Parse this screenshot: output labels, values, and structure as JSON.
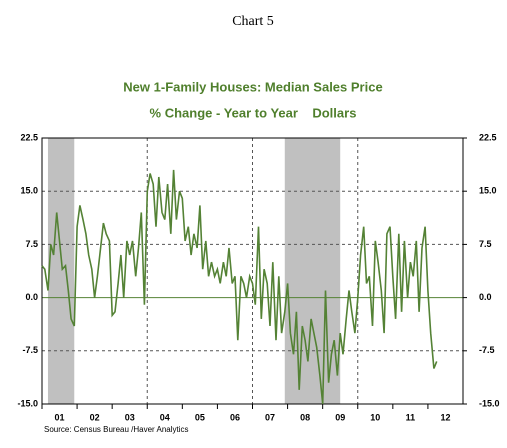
{
  "chart_data": {
    "type": "line",
    "header": "Chart 5",
    "title": "New 1-Family Houses: Median Sales Price",
    "subtitle": "% Change - Year to Year    Dollars",
    "source": "Source: Census Bureau /Haver Analytics",
    "xlim": [
      2001,
      2013
    ],
    "xticks": [
      {
        "value": 2001.5,
        "label": "01"
      },
      {
        "value": 2002.5,
        "label": "02"
      },
      {
        "value": 2003.5,
        "label": "03"
      },
      {
        "value": 2004.5,
        "label": "04"
      },
      {
        "value": 2005.5,
        "label": "05"
      },
      {
        "value": 2006.5,
        "label": "06"
      },
      {
        "value": 2007.5,
        "label": "07"
      },
      {
        "value": 2008.5,
        "label": "08"
      },
      {
        "value": 2009.5,
        "label": "09"
      },
      {
        "value": 2010.5,
        "label": "10"
      },
      {
        "value": 2011.5,
        "label": "11"
      },
      {
        "value": 2012.5,
        "label": "12"
      }
    ],
    "xgrid": [
      2001,
      2004,
      2007,
      2010
    ],
    "ylim": [
      -15,
      22.5
    ],
    "yticks": [
      {
        "value": -15,
        "label": "-15.0"
      },
      -7.5,
      {
        "value": 0,
        "label": "0.0"
      },
      7.5,
      {
        "value": 15,
        "label": "15.0"
      },
      22.5
    ],
    "y2lim": [
      -15,
      22.5
    ],
    "y2ticks": [
      {
        "value": -15,
        "label": "-15.0"
      },
      -7.5,
      {
        "value": 0,
        "label": "0.0"
      },
      7.5,
      {
        "value": 15,
        "label": "15.0"
      },
      22.5
    ],
    "grid": true,
    "shaded": [
      [
        2001.17,
        2001.92
      ],
      [
        2007.92,
        2009.5
      ]
    ],
    "x": [
      2001.0,
      2001.08,
      2001.17,
      2001.25,
      2001.33,
      2001.42,
      2001.5,
      2001.58,
      2001.67,
      2001.75,
      2001.83,
      2001.92,
      2002.0,
      2002.08,
      2002.17,
      2002.25,
      2002.33,
      2002.42,
      2002.5,
      2002.58,
      2002.67,
      2002.75,
      2002.83,
      2002.92,
      2003.0,
      2003.08,
      2003.17,
      2003.25,
      2003.33,
      2003.42,
      2003.5,
      2003.58,
      2003.67,
      2003.75,
      2003.83,
      2003.92,
      2004.0,
      2004.08,
      2004.17,
      2004.25,
      2004.33,
      2004.42,
      2004.5,
      2004.58,
      2004.67,
      2004.75,
      2004.83,
      2004.92,
      2005.0,
      2005.08,
      2005.17,
      2005.25,
      2005.33,
      2005.42,
      2005.5,
      2005.58,
      2005.67,
      2005.75,
      2005.83,
      2005.92,
      2006.0,
      2006.08,
      2006.17,
      2006.25,
      2006.33,
      2006.42,
      2006.5,
      2006.58,
      2006.67,
      2006.75,
      2006.83,
      2006.92,
      2007.0,
      2007.08,
      2007.17,
      2007.25,
      2007.33,
      2007.42,
      2007.5,
      2007.58,
      2007.67,
      2007.75,
      2007.83,
      2007.92,
      2008.0,
      2008.08,
      2008.17,
      2008.25,
      2008.33,
      2008.42,
      2008.5,
      2008.58,
      2008.67,
      2008.75,
      2008.83,
      2008.92,
      2009.0,
      2009.08,
      2009.17,
      2009.25,
      2009.33,
      2009.42,
      2009.5,
      2009.58,
      2009.67,
      2009.75,
      2009.83,
      2009.92,
      2010.0,
      2010.08,
      2010.17,
      2010.25,
      2010.33,
      2010.42,
      2010.5,
      2010.58,
      2010.67,
      2010.75,
      2010.83,
      2010.92,
      2011.0,
      2011.08,
      2011.17,
      2011.25,
      2011.33,
      2011.42,
      2011.5,
      2011.58,
      2011.67,
      2011.75,
      2011.83,
      2011.92,
      2012.0,
      2012.08,
      2012.17,
      2012.25
    ],
    "series": [
      {
        "color": "#548235",
        "values": [
          4.5,
          4,
          1,
          7.5,
          6,
          12,
          8,
          4,
          4.5,
          1,
          -3,
          -4,
          10,
          13,
          11,
          9,
          6,
          4,
          0,
          3,
          7,
          10.5,
          9,
          8,
          -2.5,
          -2,
          2,
          6,
          0,
          8,
          6,
          8,
          3,
          7,
          12,
          -1,
          15,
          17.5,
          16,
          10,
          17,
          12,
          11,
          16,
          9,
          18,
          11,
          15,
          14,
          8,
          10,
          6,
          9,
          7,
          13,
          4,
          8,
          3,
          5,
          3,
          4,
          2,
          5,
          3,
          7,
          2,
          3,
          -6,
          3,
          2,
          0,
          3,
          2,
          -1,
          10,
          -3,
          4,
          2,
          -4,
          5,
          -6,
          3,
          -5,
          -2,
          2,
          -5,
          -8,
          -2,
          -13,
          -4,
          -6,
          -9,
          -3,
          -5,
          -7,
          -11,
          -15,
          1,
          -12,
          -8,
          -6,
          -11,
          -5,
          -8,
          -3,
          1,
          -2,
          -5,
          0,
          6,
          10,
          2,
          3,
          -4,
          8,
          5,
          1,
          -5,
          9,
          10,
          3,
          -3,
          9,
          -2,
          8,
          0,
          5,
          3,
          8,
          -2,
          7,
          10,
          1,
          -5,
          -10,
          -9
        ]
      }
    ]
  }
}
